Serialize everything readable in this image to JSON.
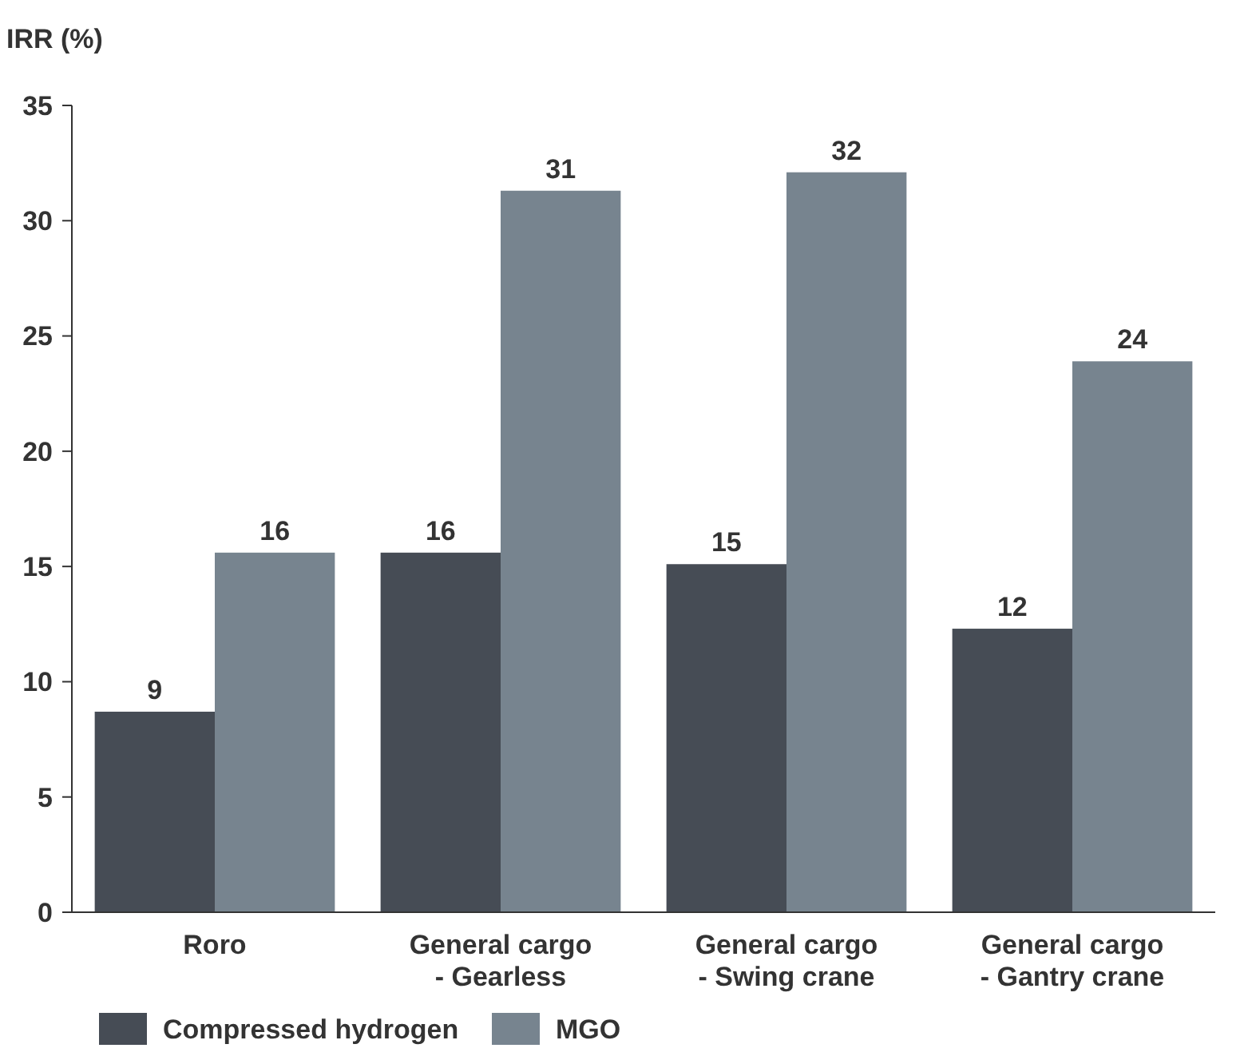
{
  "chart_data": {
    "type": "bar",
    "ylabel": "IRR (%)",
    "categories": [
      "Roro",
      "General cargo\n- Gearless",
      "General cargo\n- Swing crane",
      "General cargo\n- Gantry crane"
    ],
    "series": [
      {
        "name": "Compressed hydrogen",
        "color": "#464c55",
        "values": [
          8.7,
          15.6,
          15.1,
          12.3
        ],
        "value_labels": [
          "9",
          "16",
          "15",
          "12"
        ]
      },
      {
        "name": "MGO",
        "color": "#77848f",
        "values": [
          15.6,
          31.3,
          32.1,
          23.9
        ],
        "value_labels": [
          "16",
          "31",
          "32",
          "24"
        ]
      }
    ],
    "ylim": [
      0,
      35
    ],
    "yticks": [
      0,
      5,
      10,
      15,
      20,
      25,
      30,
      35
    ],
    "grid": false,
    "legend": "bottom left"
  }
}
